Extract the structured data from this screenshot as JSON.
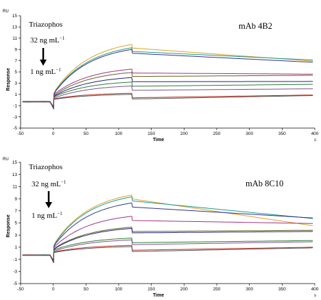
{
  "chart_data": [
    {
      "type": "line",
      "title": "mAb 4B2",
      "xlabel": "Time",
      "ylabel": "Response",
      "x_unit": "s",
      "y_unit": "RU",
      "xlim": [
        -50,
        400
      ],
      "ylim": [
        -5,
        15
      ],
      "xticks": [
        -50,
        0,
        50,
        100,
        150,
        200,
        250,
        300,
        350,
        400
      ],
      "yticks": [
        -5,
        -3,
        -1,
        1,
        3,
        5,
        7,
        9,
        11,
        13,
        15
      ],
      "annotations": {
        "analyte": "Triazophos",
        "high_conc": "32 ng mL",
        "low_conc": "1 ng mL",
        "exponent": "−1"
      },
      "injection": {
        "start": 0,
        "end": 120
      },
      "series": [
        {
          "color": "#e0a020",
          "values": {
            "jump": 1.2,
            "peak": 9.9,
            "end": 6.9
          }
        },
        {
          "color": "#1a9a8a",
          "values": {
            "jump": 1.1,
            "peak": 9.3,
            "end": 7.1
          }
        },
        {
          "color": "#303090",
          "values": {
            "jump": 1.0,
            "peak": 9.0,
            "end": 6.7
          }
        },
        {
          "color": "#a03080",
          "values": {
            "jump": 0.9,
            "peak": 5.5,
            "end": 4.6
          }
        },
        {
          "color": "#606020",
          "values": {
            "jump": 0.7,
            "peak": 4.9,
            "end": 4.4
          }
        },
        {
          "color": "#202080",
          "values": {
            "jump": 0.6,
            "peak": 4.0,
            "end": 3.3
          }
        },
        {
          "color": "#2a7a30",
          "values": {
            "jump": 0.5,
            "peak": 3.2,
            "end": 2.8
          }
        },
        {
          "color": "#7a5090",
          "values": {
            "jump": 0.3,
            "peak": 2.5,
            "end": 2.0
          }
        },
        {
          "color": "#c03020",
          "values": {
            "jump": 0.2,
            "peak": 1.2,
            "end": 0.9
          }
        },
        {
          "color": "#505050",
          "values": {
            "jump": 0.1,
            "peak": 1.0,
            "end": 0.8
          }
        }
      ]
    },
    {
      "type": "line",
      "title": "mAb 8C10",
      "xlabel": "Time",
      "ylabel": "Response",
      "x_unit": "s",
      "y_unit": "RU",
      "xlim": [
        -50,
        400
      ],
      "ylim": [
        -5,
        15
      ],
      "xticks": [
        -50,
        0,
        50,
        100,
        150,
        200,
        250,
        300,
        350,
        400
      ],
      "yticks": [
        -5,
        -3,
        -1,
        1,
        3,
        5,
        7,
        9,
        11,
        13,
        15
      ],
      "annotations": {
        "analyte": "Triazophos",
        "high_conc": "32 ng mL",
        "low_conc": "1 ng mL",
        "exponent": "−1"
      },
      "injection": {
        "start": 0,
        "end": 120
      },
      "series": [
        {
          "color": "#e0a020",
          "values": {
            "jump": 1.3,
            "peak": 9.6,
            "end": 4.5
          }
        },
        {
          "color": "#1a9a8a",
          "values": {
            "jump": 1.2,
            "peak": 9.3,
            "end": 5.7
          }
        },
        {
          "color": "#303090",
          "values": {
            "jump": 1.1,
            "peak": 8.3,
            "end": 5.8
          }
        },
        {
          "color": "#a03080",
          "values": {
            "jump": 0.9,
            "peak": 6.1,
            "end": 4.9
          }
        },
        {
          "color": "#606020",
          "values": {
            "jump": 0.7,
            "peak": 4.3,
            "end": 3.8
          }
        },
        {
          "color": "#202080",
          "values": {
            "jump": 0.6,
            "peak": 4.1,
            "end": 3.6
          }
        },
        {
          "color": "#2a7a30",
          "values": {
            "jump": 0.5,
            "peak": 2.5,
            "end": 2.1
          }
        },
        {
          "color": "#7a5090",
          "values": {
            "jump": 0.3,
            "peak": 2.2,
            "end": 1.9
          }
        },
        {
          "color": "#c03020",
          "values": {
            "jump": 0.2,
            "peak": 1.3,
            "end": 1.0
          }
        },
        {
          "color": "#505050",
          "values": {
            "jump": 0.1,
            "peak": 1.1,
            "end": 0.9
          }
        }
      ]
    }
  ]
}
